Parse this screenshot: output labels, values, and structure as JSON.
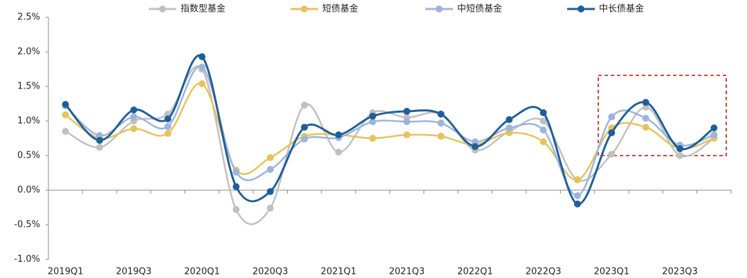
{
  "chart_data": {
    "type": "line",
    "categories": [
      "2019Q1",
      null,
      "2019Q3",
      null,
      "2020Q1",
      null,
      "2020Q3",
      null,
      "2021Q1",
      null,
      "2021Q3",
      null,
      "2022Q1",
      null,
      "2022Q3",
      null,
      "2023Q1",
      null,
      "2023Q3",
      null
    ],
    "series": [
      {
        "name": "指数型基金",
        "color": "#c0c0c0",
        "values": [
          0.85,
          0.62,
          1.0,
          1.1,
          1.75,
          -0.28,
          -0.26,
          1.23,
          0.55,
          1.12,
          1.05,
          1.1,
          0.58,
          0.85,
          1.0,
          0.15,
          0.52,
          1.2,
          0.5,
          0.75
        ]
      },
      {
        "name": "短债基金",
        "color": "#e6c35c",
        "values": [
          1.09,
          0.75,
          0.89,
          0.82,
          1.54,
          0.29,
          0.47,
          0.78,
          0.8,
          0.75,
          0.8,
          0.78,
          0.66,
          0.83,
          0.7,
          0.15,
          0.9,
          0.91,
          0.6,
          0.75
        ]
      },
      {
        "name": "中短债基金",
        "color": "#9db4dc",
        "values": [
          1.22,
          0.79,
          1.06,
          0.92,
          1.78,
          0.26,
          0.3,
          0.74,
          0.76,
          0.99,
          0.99,
          0.97,
          0.7,
          0.9,
          0.87,
          -0.08,
          1.06,
          1.04,
          0.65,
          0.8
        ]
      },
      {
        "name": "中长债基金",
        "color": "#1f5f99",
        "values": [
          1.24,
          0.72,
          1.16,
          1.03,
          1.93,
          0.05,
          -0.02,
          0.91,
          0.8,
          1.07,
          1.14,
          1.1,
          0.63,
          1.02,
          1.12,
          -0.2,
          0.83,
          1.27,
          0.6,
          0.9
        ]
      }
    ],
    "ylim": [
      -1.0,
      2.5
    ],
    "yticks": [
      {
        "value": -1.0,
        "label": "-1.0%"
      },
      {
        "value": -0.5,
        "label": "-0.5%"
      },
      {
        "value": 0.0,
        "label": "0.0%"
      },
      {
        "value": 0.5,
        "label": "0.5%"
      },
      {
        "value": 1.0,
        "label": "1.0%"
      },
      {
        "value": 1.5,
        "label": "1.5%"
      },
      {
        "value": 2.0,
        "label": "2.0%"
      },
      {
        "value": 2.5,
        "label": "2.5%"
      }
    ],
    "grid": false,
    "legend": "top"
  }
}
